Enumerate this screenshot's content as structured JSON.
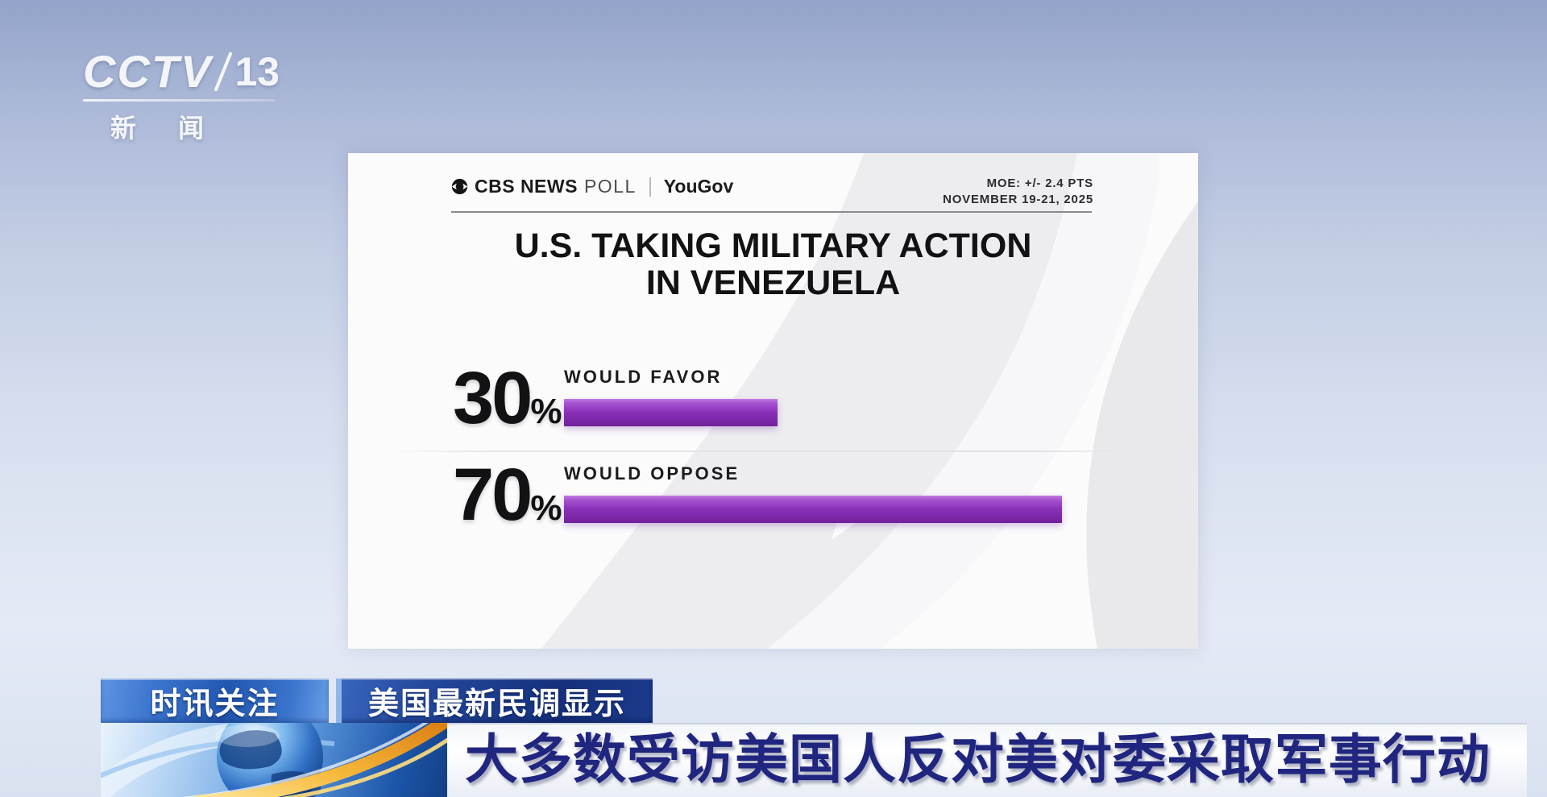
{
  "channel": {
    "logo_main": "CCTV",
    "logo_number": "13",
    "logo_sub": "新闻"
  },
  "poll_card": {
    "brand": {
      "cbs": "CBS NEWS",
      "poll": "POLL",
      "partner": "YouGov"
    },
    "meta": {
      "moe": "MOE: +/- 2.4 PTS",
      "date_range": "NOVEMBER 19-21, 2025"
    },
    "title_line1": "U.S. TAKING MILITARY ACTION",
    "title_line2": "IN VENEZUELA",
    "bars": [
      {
        "value": "30",
        "unit": "%",
        "label": "WOULD FAVOR"
      },
      {
        "value": "70",
        "unit": "%",
        "label": "WOULD OPPOSE"
      }
    ],
    "bar_color": "#8a2fb8"
  },
  "ticker": {
    "badge1": "时讯关注",
    "badge2": "美国最新民调显示",
    "headline": "大多数受访美国人反对美对委采取军事行动"
  },
  "chart_data": {
    "type": "bar",
    "orientation": "horizontal",
    "title": "U.S. TAKING MILITARY ACTION IN VENEZUELA",
    "source": "CBS NEWS POLL | YouGov",
    "moe": "MOE: +/- 2.4 PTS",
    "date_range": "NOVEMBER 19-21, 2025",
    "categories": [
      "WOULD FAVOR",
      "WOULD OPPOSE"
    ],
    "values": [
      30,
      70
    ],
    "unit": "%",
    "xlim": [
      0,
      100
    ],
    "bar_color": "#8a2fb8",
    "value_label_position": "left",
    "grid": false,
    "legend": false
  }
}
